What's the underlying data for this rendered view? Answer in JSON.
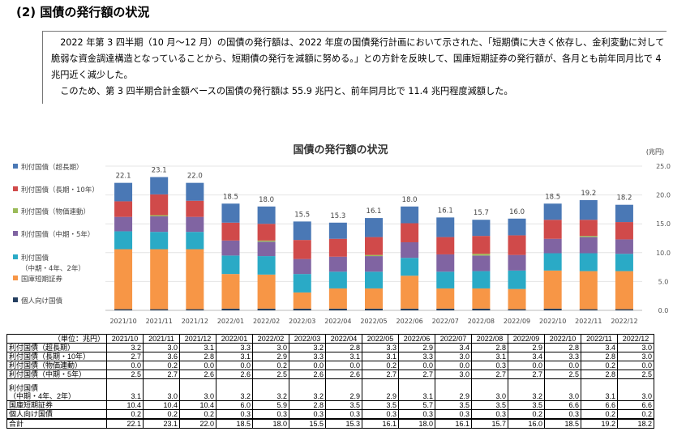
{
  "heading": "(2) 国債の発行額の状況",
  "paragraphs": [
    "2022 年第 3 四半期（10 月～12 月）の国債の発行額は、2022 年度の国債発行計画において示された、「短期債に大きく依存し、金利変動に対して脆弱な資金調達構造となっていることから、短期債の発行を減額に努める。」との方針を反映して、国庫短期証券の発行額が、各月とも前年同月比で 4 兆円近く減少した。",
    "このため、第 3 四半期合計金額ベースの国債の発行額は 55.9 兆円と、前年同月比で 11.4 兆円程度減額した。"
  ],
  "chart_data": {
    "type": "bar",
    "stacked": true,
    "title": "国債の発行額の状況",
    "unit": "(兆円)",
    "ylim": [
      0,
      25
    ],
    "yticks": [
      "0.0",
      "5.0",
      "10.0",
      "15.0",
      "20.0",
      "25.0"
    ],
    "grid": true,
    "legend": "left",
    "categories": [
      "2021/10",
      "2021/11",
      "2021/12",
      "2022/01",
      "2022/02",
      "2022/03",
      "2022/04",
      "2022/05",
      "2022/06",
      "2022/07",
      "2022/08",
      "2022/09",
      "2022/10",
      "2022/11",
      "2022/12"
    ],
    "series": [
      {
        "name": "個人向け国債",
        "color": "#243f60",
        "values": [
          0.2,
          0.2,
          0.2,
          0.3,
          0.3,
          0.3,
          0.3,
          0.3,
          0.3,
          0.3,
          0.3,
          0.2,
          0.3,
          0.2,
          0.2
        ]
      },
      {
        "name": "国庫短期証券",
        "color": "#f79646",
        "values": [
          10.4,
          10.4,
          10.4,
          6.0,
          5.9,
          2.8,
          3.5,
          3.5,
          5.7,
          3.5,
          3.5,
          3.5,
          6.6,
          6.6,
          6.6
        ]
      },
      {
        "name": "利付国債（中期・4年、2年）",
        "color": "#2aaac6",
        "values": [
          3.1,
          3.0,
          3.0,
          3.2,
          3.2,
          3.2,
          2.9,
          2.9,
          3.1,
          2.9,
          3.0,
          3.2,
          3.0,
          3.1,
          3.0
        ]
      },
      {
        "name": "利付国債（中期・5年）",
        "color": "#8064a2",
        "values": [
          2.5,
          2.7,
          2.6,
          2.6,
          2.5,
          2.6,
          2.6,
          2.7,
          2.7,
          3.0,
          2.7,
          2.7,
          2.5,
          2.8,
          2.5
        ]
      },
      {
        "name": "利付国債（物価連動）",
        "color": "#9bbb59",
        "values": [
          0.0,
          0.2,
          0.0,
          0.0,
          0.2,
          0.0,
          0.0,
          0.2,
          0.0,
          0.0,
          0.3,
          0.0,
          0.0,
          0.2,
          0.0
        ]
      },
      {
        "name": "利付国債（長期・10年）",
        "color": "#d04a4a",
        "values": [
          2.7,
          3.6,
          2.8,
          3.1,
          2.9,
          3.3,
          3.1,
          3.1,
          3.3,
          3.0,
          3.1,
          3.4,
          3.3,
          2.8,
          3.0
        ]
      },
      {
        "name": "利付国債（超長期）",
        "color": "#4a78b5",
        "values": [
          3.2,
          3.0,
          3.1,
          3.3,
          3.0,
          3.2,
          2.8,
          3.3,
          2.9,
          3.4,
          2.8,
          2.9,
          2.8,
          3.4,
          3.0
        ]
      }
    ],
    "totals": [
      "22.1",
      "23.1",
      "22.0",
      "18.5",
      "18.0",
      "15.5",
      "15.3",
      "16.1",
      "18.0",
      "16.1",
      "15.7",
      "16.0",
      "18.5",
      "19.2",
      "18.2"
    ]
  },
  "legend_labels": [
    "利付国債（超長期）",
    "利付国債（長期・10年）",
    "利付国債（物価連動）",
    "利付国債（中期・5年）",
    "利付国債",
    "（中期・4年、2年）",
    "国庫短期証券",
    "個人向け国債"
  ],
  "table": {
    "unit_header": "（単位：兆円）",
    "rows": [
      {
        "label": "利付国債（超長期）",
        "values": [
          "3.2",
          "3.0",
          "3.1",
          "3.3",
          "3.0",
          "3.2",
          "2.8",
          "3.3",
          "2.9",
          "3.4",
          "2.8",
          "2.9",
          "2.8",
          "3.4",
          "3.0"
        ]
      },
      {
        "label": "利付国債（長期・10年）",
        "values": [
          "2.7",
          "3.6",
          "2.8",
          "3.1",
          "2.9",
          "3.3",
          "3.1",
          "3.1",
          "3.3",
          "3.0",
          "3.1",
          "3.4",
          "3.3",
          "2.8",
          "3.0"
        ]
      },
      {
        "label": "利付国債（物価連動）",
        "values": [
          "0.0",
          "0.2",
          "0.0",
          "0.0",
          "0.2",
          "0.0",
          "0.0",
          "0.2",
          "0.0",
          "0.0",
          "0.3",
          "0.0",
          "0.0",
          "0.2",
          "0.0"
        ]
      },
      {
        "label": "利付国債（中期・5年）",
        "values": [
          "2.5",
          "2.7",
          "2.6",
          "2.6",
          "2.5",
          "2.6",
          "2.6",
          "2.7",
          "2.7",
          "3.0",
          "2.7",
          "2.7",
          "2.5",
          "2.8",
          "2.5"
        ]
      },
      {
        "label": "利付国債\n（中期・4年、2年）",
        "values": [
          "3.1",
          "3.0",
          "3.0",
          "3.2",
          "3.2",
          "3.2",
          "2.9",
          "2.9",
          "3.1",
          "2.9",
          "3.0",
          "3.2",
          "3.0",
          "3.1",
          "3.0"
        ]
      },
      {
        "label": "国庫短期証券",
        "values": [
          "10.4",
          "10.4",
          "10.4",
          "6.0",
          "5.9",
          "2.8",
          "3.5",
          "3.5",
          "5.7",
          "3.5",
          "3.5",
          "3.5",
          "6.6",
          "6.6",
          "6.6"
        ]
      },
      {
        "label": "個人向け国債",
        "values": [
          "0.2",
          "0.2",
          "0.2",
          "0.3",
          "0.3",
          "0.3",
          "0.3",
          "0.3",
          "0.3",
          "0.3",
          "0.3",
          "0.2",
          "0.3",
          "0.2",
          "0.2"
        ]
      },
      {
        "label": "合計",
        "values": [
          "22.1",
          "23.1",
          "22.0",
          "18.5",
          "18.0",
          "15.5",
          "15.3",
          "16.1",
          "18.0",
          "16.1",
          "15.7",
          "16.0",
          "18.5",
          "19.2",
          "18.2"
        ]
      }
    ]
  }
}
